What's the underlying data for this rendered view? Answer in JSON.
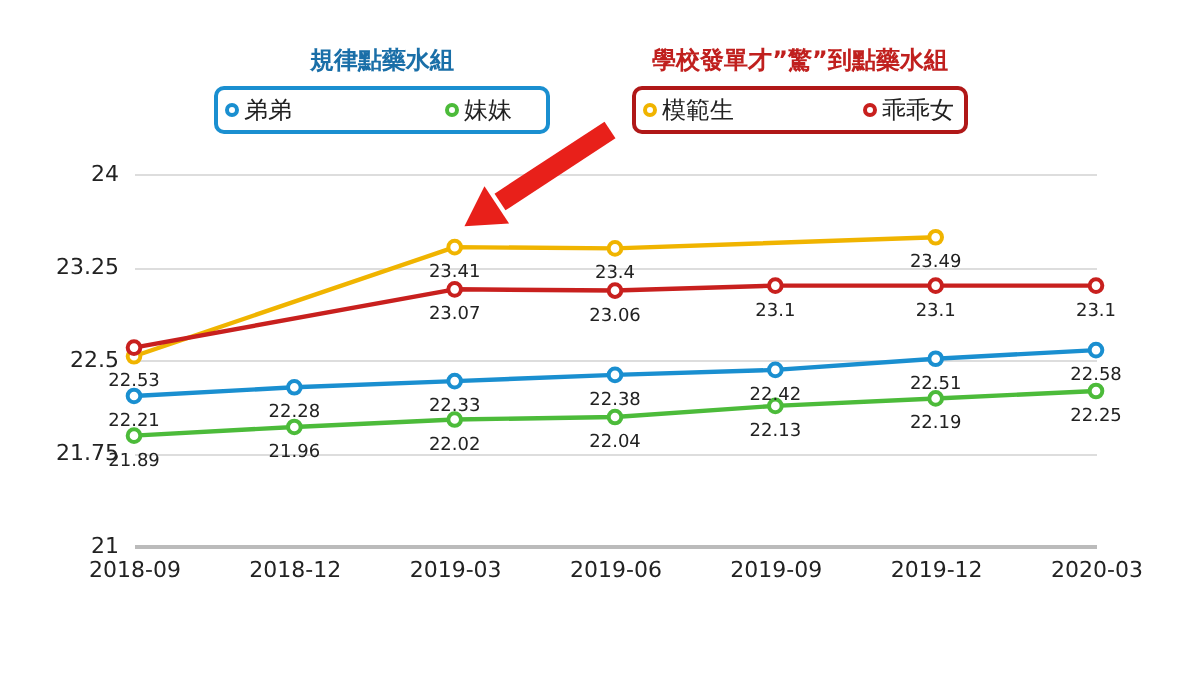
{
  "chart_data": {
    "type": "line",
    "categories": [
      "2018-09",
      "2018-12",
      "2019-03",
      "2019-06",
      "2019-09",
      "2019-12",
      "2020-03"
    ],
    "series": [
      {
        "name": "弟弟",
        "color": "#1a8fd0",
        "values": [
          22.21,
          22.28,
          22.33,
          22.38,
          22.42,
          22.51,
          22.58
        ],
        "value_labels": [
          "22.21",
          "22.28",
          "22.33",
          "22.38",
          "22.42",
          "22.51",
          "22.58"
        ]
      },
      {
        "name": "妹妹",
        "color": "#4cbb3a",
        "values": [
          21.89,
          21.96,
          22.02,
          22.04,
          22.13,
          22.19,
          22.25
        ],
        "value_labels": [
          "21.89",
          "21.96",
          "22.02",
          "22.04",
          "22.13",
          "22.19",
          "22.25"
        ]
      },
      {
        "name": "模範生",
        "color": "#f0b400",
        "values": [
          22.53,
          null,
          23.41,
          23.4,
          null,
          23.49,
          null
        ],
        "value_labels": [
          "22.53",
          null,
          "23.41",
          "23.4",
          null,
          "23.49",
          null
        ]
      },
      {
        "name": "乖乖女",
        "color": "#c8201e",
        "values": [
          22.6,
          null,
          23.07,
          23.06,
          23.1,
          23.1,
          23.1
        ],
        "value_labels": [
          null,
          null,
          "23.07",
          "23.06",
          "23.1",
          "23.1",
          "23.1"
        ]
      }
    ],
    "annotations": [
      "規律點藥水組",
      "學校發單才”驚”到點藥水組"
    ],
    "ylim": [
      21,
      24
    ],
    "yticks": [
      21,
      21.75,
      22.5,
      23.25,
      24
    ],
    "grid": "y",
    "legend": "top",
    "marker": "circle",
    "line_style": "solid"
  }
}
